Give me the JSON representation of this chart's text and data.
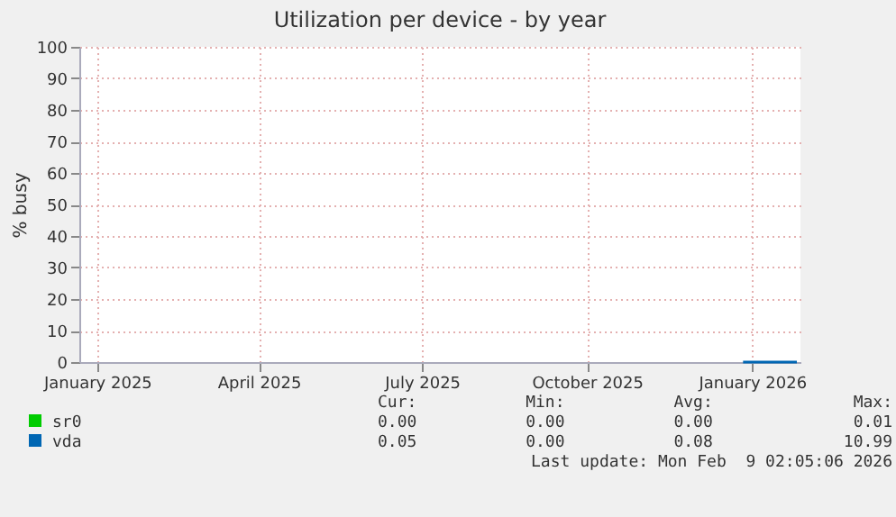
{
  "chart_data": {
    "type": "line",
    "title": "Utilization per device - by year",
    "ylabel": "% busy",
    "x": [
      "2025-12-27",
      "2026-01-10",
      "2026-01-26"
    ],
    "series": [
      {
        "name": "sr0",
        "color": "#00cc00",
        "values": [
          null,
          null,
          null
        ]
      },
      {
        "name": "vda",
        "color": "#0066b3",
        "values": [
          0,
          0,
          0
        ]
      }
    ],
    "xlim": [
      "2024-12-22",
      "2026-01-28"
    ],
    "xticks": [
      {
        "value": "2025-01-01",
        "label": "January 2025"
      },
      {
        "value": "2025-04-01",
        "label": "April 2025"
      },
      {
        "value": "2025-07-01",
        "label": "July 2025"
      },
      {
        "value": "2025-10-01",
        "label": "October 2025"
      },
      {
        "value": "2026-01-01",
        "label": "January 2026"
      }
    ],
    "ylim": [
      0,
      100
    ],
    "yticks": [
      0,
      10,
      20,
      30,
      40,
      50,
      60,
      70,
      80,
      90,
      100
    ],
    "grid": true,
    "legend": "bottom",
    "annotations": [
      "Cur:",
      "Min:",
      "Avg:",
      "Max:",
      "0.00",
      "0.00",
      "0.00",
      "0.01",
      "0.05",
      "0.00",
      "0.08",
      "10.99",
      "Last update: Mon Feb  9 02:05:06 2026"
    ]
  }
}
